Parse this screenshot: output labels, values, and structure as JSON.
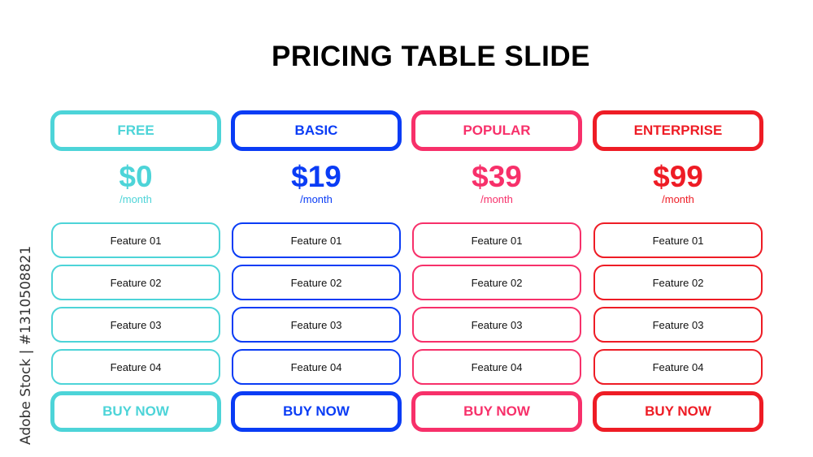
{
  "title": "PRICING TABLE SLIDE",
  "watermark": "Adobe Stock | #1310508821",
  "plans": [
    {
      "name": "FREE",
      "price": "$0",
      "period": "/month",
      "color": "#4dd4d8",
      "features": [
        "Feature 01",
        "Feature 02",
        "Feature 03",
        "Feature 04"
      ],
      "cta": "BUY NOW"
    },
    {
      "name": "BASIC",
      "price": "$19",
      "period": "/month",
      "color": "#0a3cf5",
      "features": [
        "Feature 01",
        "Feature 02",
        "Feature 03",
        "Feature 04"
      ],
      "cta": "BUY NOW"
    },
    {
      "name": "POPULAR",
      "price": "$39",
      "period": "/month",
      "color": "#f7306a",
      "features": [
        "Feature 01",
        "Feature 02",
        "Feature 03",
        "Feature 04"
      ],
      "cta": "BUY NOW"
    },
    {
      "name": "ENTERPRISE",
      "price": "$99",
      "period": "/month",
      "color": "#ee1c25",
      "features": [
        "Feature 01",
        "Feature 02",
        "Feature 03",
        "Feature 04"
      ],
      "cta": "BUY NOW"
    }
  ]
}
